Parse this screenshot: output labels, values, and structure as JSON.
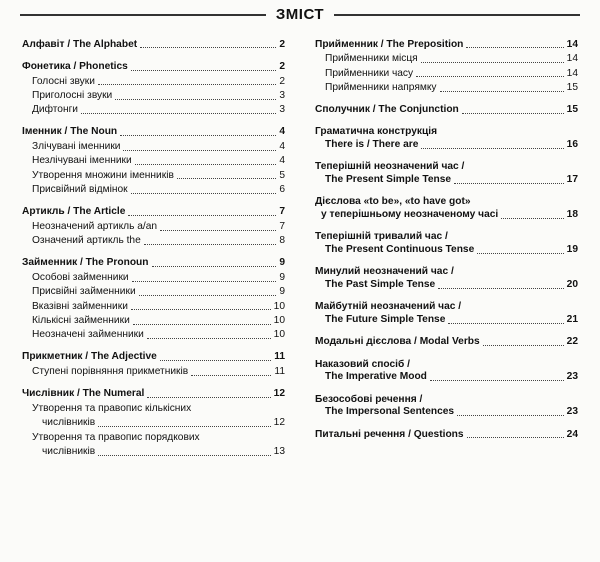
{
  "title": "ЗМІСТ",
  "columns": [
    [
      {
        "type": "section",
        "label": "Алфавіт / The Alphabet",
        "page": 2
      },
      {
        "type": "section",
        "label": "Фонетика / Phonetics",
        "page": 2
      },
      {
        "type": "sub",
        "label": "Голосні звуки",
        "page": 2
      },
      {
        "type": "sub",
        "label": "Приголосні звуки",
        "page": 3
      },
      {
        "type": "sub",
        "label": "Дифтонги",
        "page": 3
      },
      {
        "type": "section",
        "label": "Іменник / The Noun",
        "page": 4
      },
      {
        "type": "sub",
        "label": "Злічувані іменники",
        "page": 4
      },
      {
        "type": "sub",
        "label": "Незлічувані іменники",
        "page": 4
      },
      {
        "type": "sub",
        "label": "Утворення множини іменників",
        "page": 5
      },
      {
        "type": "sub",
        "label": "Присвійний відмінок",
        "page": 6
      },
      {
        "type": "section",
        "label": "Артикль / The Article",
        "page": 7
      },
      {
        "type": "sub",
        "label": "Неозначений артикль a/an",
        "page": 7
      },
      {
        "type": "sub",
        "label": "Означений артикль the",
        "page": 8
      },
      {
        "type": "section",
        "label": "Займенник / The Pronoun",
        "page": 9
      },
      {
        "type": "sub",
        "label": "Особові займенники",
        "page": 9
      },
      {
        "type": "sub",
        "label": "Присвійні займенники",
        "page": 9
      },
      {
        "type": "sub",
        "label": "Вказівні займенники",
        "page": 10
      },
      {
        "type": "sub",
        "label": "Кількісні займенники",
        "page": 10
      },
      {
        "type": "sub",
        "label": "Неозначені займенники",
        "page": 10
      },
      {
        "type": "section",
        "label": "Прикметник / The Adjective",
        "page": 11
      },
      {
        "type": "sub",
        "label": "Ступені порівняння прикметників",
        "page": 11
      },
      {
        "type": "section",
        "label": "Числівник / The Numeral",
        "page": 12
      },
      {
        "type": "sub-plain",
        "label": "Утворення та правопис кількісних"
      },
      {
        "type": "cont",
        "indent": 20,
        "label": "числівників",
        "page": 12
      },
      {
        "type": "sub-plain",
        "label": "Утворення та правопис порядкових"
      },
      {
        "type": "cont",
        "indent": 20,
        "label": "числівників",
        "page": 13
      }
    ],
    [
      {
        "type": "section",
        "label": "Прийменник / The Preposition",
        "page": 14
      },
      {
        "type": "sub",
        "label": "Прийменники місця",
        "page": 14
      },
      {
        "type": "sub",
        "label": "Прийменники часу",
        "page": 14
      },
      {
        "type": "sub",
        "label": "Прийменники напрямку",
        "page": 15
      },
      {
        "type": "section",
        "label": "Сполучник / The Conjunction",
        "page": 15
      },
      {
        "type": "section-plain",
        "label": "Граматична конструкція"
      },
      {
        "type": "cont",
        "indent": 10,
        "bold": true,
        "label": "There is / There are",
        "page": 16
      },
      {
        "type": "section-plain",
        "label": "Теперішній неозначений час /"
      },
      {
        "type": "cont",
        "indent": 10,
        "bold": true,
        "label": "The Present Simple Tense",
        "page": 17
      },
      {
        "type": "section-plain",
        "label": "Дієслова «to be», «to have got»"
      },
      {
        "type": "cont",
        "indent": 6,
        "bold": true,
        "label": "у теперішньому неозначеному часі",
        "page": 18
      },
      {
        "type": "section-plain",
        "label": "Теперішній тривалий час /"
      },
      {
        "type": "cont",
        "indent": 10,
        "bold": true,
        "label": "The Present Continuous Tense",
        "page": 19
      },
      {
        "type": "section-plain",
        "label": "Минулий неозначений час /"
      },
      {
        "type": "cont",
        "indent": 10,
        "bold": true,
        "label": "The Past Simple Tense",
        "page": 20
      },
      {
        "type": "section-plain",
        "label": "Майбутній неозначений час /"
      },
      {
        "type": "cont",
        "indent": 10,
        "bold": true,
        "label": "The Future Simple Tense",
        "page": 21
      },
      {
        "type": "section",
        "label": "Модальні дієслова / Modal Verbs",
        "page": 22
      },
      {
        "type": "section-plain",
        "label": "Наказовий спосіб /"
      },
      {
        "type": "cont",
        "indent": 10,
        "bold": true,
        "label": "The Imperative Mood",
        "page": 23
      },
      {
        "type": "section-plain",
        "label": "Безособові речення /"
      },
      {
        "type": "cont",
        "indent": 10,
        "bold": true,
        "label": "The Impersonal Sentences",
        "page": 23
      },
      {
        "type": "section",
        "label": "Питальні речення / Questions",
        "page": 24
      }
    ]
  ]
}
